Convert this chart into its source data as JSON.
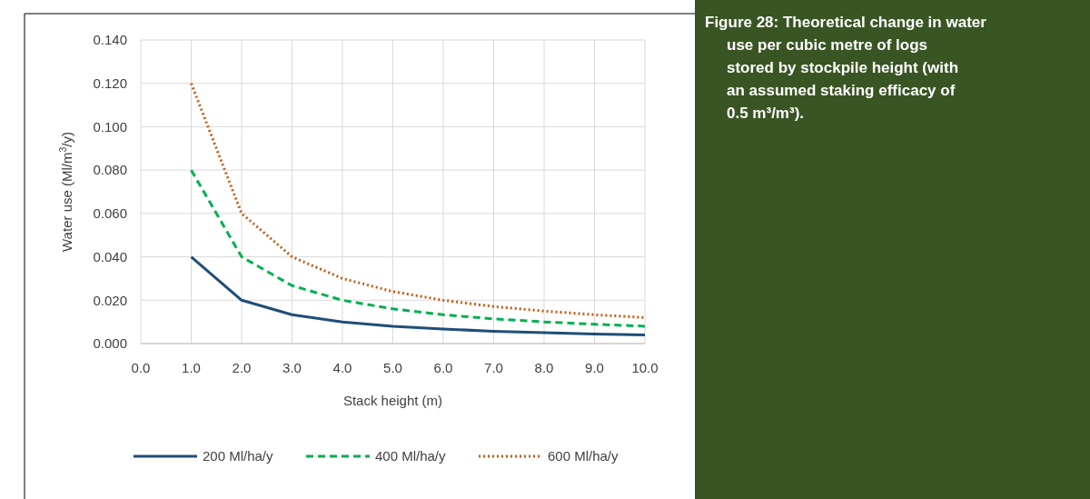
{
  "chart_data": {
    "type": "line",
    "xlabel": "Stack height (m)",
    "ylabel": "Water use (Ml/m$^{3}$/y)",
    "x": [
      1,
      2,
      3,
      4,
      5,
      6,
      7,
      8,
      9,
      10
    ],
    "series": [
      {
        "name": "200 Ml/ha/y",
        "color": "#1f4e79",
        "line_style": "solid",
        "values": [
          0.04,
          0.02,
          0.0133,
          0.01,
          0.008,
          0.0067,
          0.0057,
          0.005,
          0.0044,
          0.004
        ]
      },
      {
        "name": "400 Ml/ha/y",
        "color": "#00b050",
        "line_style": "dashed",
        "values": [
          0.08,
          0.04,
          0.0267,
          0.02,
          0.016,
          0.0133,
          0.0114,
          0.01,
          0.0089,
          0.008
        ]
      },
      {
        "name": "600 Ml/ha/y",
        "color": "#c55a11",
        "line_style": "dotted",
        "values": [
          0.12,
          0.06,
          0.04,
          0.03,
          0.024,
          0.02,
          0.0171,
          0.015,
          0.0133,
          0.012
        ]
      }
    ],
    "xlim": [
      0,
      10
    ],
    "xticks": [
      {
        "value": 0,
        "label": "0.0"
      },
      {
        "value": 1,
        "label": "1.0"
      },
      {
        "value": 2,
        "label": "2.0"
      },
      {
        "value": 3,
        "label": "3.0"
      },
      {
        "value": 4,
        "label": "4.0"
      },
      {
        "value": 5,
        "label": "5.0"
      },
      {
        "value": 6,
        "label": "6.0"
      },
      {
        "value": 7,
        "label": "7.0"
      },
      {
        "value": 8,
        "label": "8.0"
      },
      {
        "value": 9,
        "label": "9.0"
      },
      {
        "value": 10,
        "label": "10.0"
      }
    ],
    "ylim": [
      0,
      0.14
    ],
    "yticks": [
      {
        "value": 0,
        "label": "0.000"
      },
      {
        "value": 0.02,
        "label": "0.020"
      },
      {
        "value": 0.04,
        "label": "0.040"
      },
      {
        "value": 0.06,
        "label": "0.060"
      },
      {
        "value": 0.08,
        "label": "0.080"
      },
      {
        "value": 0.1,
        "label": "0.100"
      },
      {
        "value": 0.12,
        "label": "0.120"
      },
      {
        "value": 0.14,
        "label": "0.140"
      }
    ],
    "grid": true,
    "legend": "bottom",
    "annotations": [
      "Figure 28: Theoretical change in water use per cubic metre of logs stored by stockpile height (with an assumed staking efficacy of 0.5 m³/m³)."
    ]
  }
}
